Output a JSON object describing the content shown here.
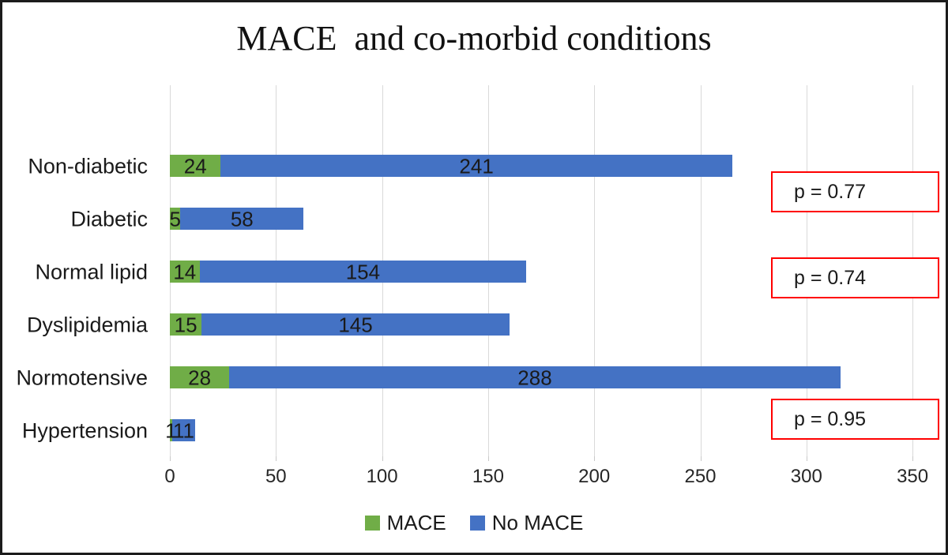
{
  "chart_data": {
    "type": "bar",
    "orientation": "horizontal-stacked",
    "title": "MACE  and co-morbid conditions",
    "categories": [
      "Non-diabetic",
      "Diabetic",
      "Normal lipid",
      "Dyslipidemia",
      "Normotensive",
      "Hypertension"
    ],
    "series": [
      {
        "name": "MACE",
        "color": "#70AD47",
        "values": [
          24,
          5,
          14,
          15,
          28,
          1
        ]
      },
      {
        "name": "No MACE",
        "color": "#4472C4",
        "values": [
          241,
          58,
          154,
          145,
          288,
          11
        ]
      }
    ],
    "x_ticks": [
      0,
      50,
      100,
      150,
      200,
      250,
      300,
      350
    ],
    "xlim": [
      0,
      350
    ],
    "grid": true,
    "legend_position": "bottom",
    "annotations": [
      {
        "label": "p = 0.77",
        "between": [
          "Non-diabetic",
          "Diabetic"
        ]
      },
      {
        "label": "p = 0.74",
        "between": [
          "Normal lipid",
          "Dyslipidemia"
        ]
      },
      {
        "label": "p = 0.95",
        "between": [
          "Normotensive",
          "Hypertension"
        ]
      }
    ],
    "colors": {
      "mace": "#70AD47",
      "no_mace": "#4472C4",
      "gridline": "#d9d9d9",
      "annotation_border": "#ff0000",
      "figure_border": "#1c1c1c"
    }
  }
}
